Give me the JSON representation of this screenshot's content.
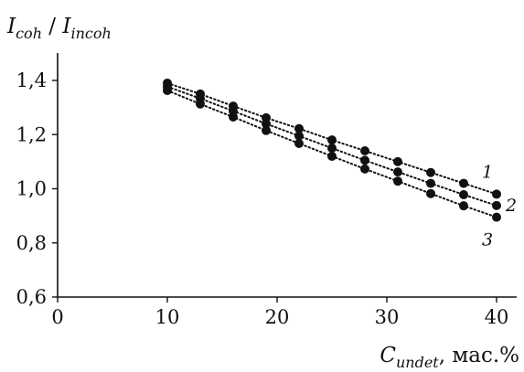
{
  "chart_data": {
    "type": "scatter",
    "title": "",
    "ylabel": {
      "main": "I",
      "main_sub": "coh",
      "separator": " / ",
      "second": "I",
      "second_sub": "incoh"
    },
    "xlabel": {
      "main": "C",
      "sub": "undet",
      "suffix": ", мас.%"
    },
    "xlim": [
      0,
      40
    ],
    "ylim": [
      0.6,
      1.5
    ],
    "xticks": [
      {
        "value": 0,
        "label": "0"
      },
      {
        "value": 10,
        "label": "10"
      },
      {
        "value": 20,
        "label": "20"
      },
      {
        "value": 30,
        "label": "30"
      },
      {
        "value": 40,
        "label": "40"
      }
    ],
    "yticks": [
      {
        "value": 0.6,
        "label": "0,6"
      },
      {
        "value": 0.8,
        "label": "0,8"
      },
      {
        "value": 1.0,
        "label": "1,0"
      },
      {
        "value": 1.2,
        "label": "1,2"
      },
      {
        "value": 1.4,
        "label": "1,4"
      }
    ],
    "grid": false,
    "legend": "none",
    "series": [
      {
        "name": "1",
        "x": [
          10,
          13,
          16,
          19,
          22,
          25,
          28,
          31,
          34,
          37,
          40
        ],
        "y": [
          1.39,
          1.35,
          1.305,
          1.262,
          1.222,
          1.18,
          1.14,
          1.1,
          1.06,
          1.02,
          0.98
        ]
      },
      {
        "name": "2",
        "x": [
          10,
          13,
          16,
          19,
          22,
          25,
          28,
          31,
          34,
          37,
          40
        ],
        "y": [
          1.377,
          1.333,
          1.287,
          1.24,
          1.195,
          1.15,
          1.105,
          1.062,
          1.02,
          0.978,
          0.938
        ]
      },
      {
        "name": "3",
        "x": [
          10,
          13,
          16,
          19,
          22,
          25,
          28,
          31,
          34,
          37,
          40
        ],
        "y": [
          1.363,
          1.313,
          1.265,
          1.215,
          1.167,
          1.12,
          1.073,
          1.028,
          0.982,
          0.937,
          0.895
        ]
      }
    ],
    "colors": {
      "ink": "#111111",
      "background": "#ffffff"
    }
  }
}
